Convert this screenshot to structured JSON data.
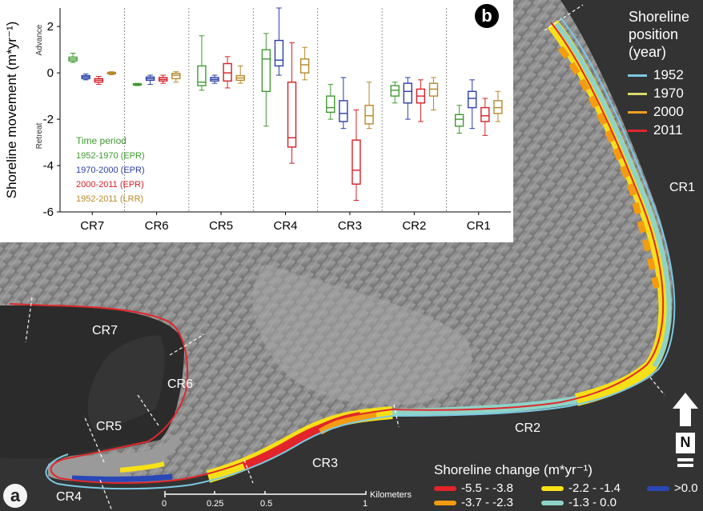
{
  "map": {
    "panel_a_label": "a",
    "panel_b_label": "b",
    "coast_labels": [
      "CR1",
      "CR2",
      "CR3",
      "CR4",
      "CR5",
      "CR6",
      "CR7"
    ],
    "north_label": "N",
    "scale": {
      "ticks": [
        "0",
        "0.25",
        "0.5",
        "1"
      ],
      "unit": "Kilometers"
    }
  },
  "shoreline_legend": {
    "title_lines": [
      "Shoreline",
      "position",
      "(year)"
    ],
    "items": [
      {
        "label": "1952",
        "color": "#7ec8e3"
      },
      {
        "label": "1970",
        "color": "#d9d96a"
      },
      {
        "label": "2000",
        "color": "#f0a020"
      },
      {
        "label": "2011",
        "color": "#e0282a"
      }
    ]
  },
  "change_legend": {
    "title": "Shoreline change (m*yr⁻¹)",
    "items": [
      {
        "label": "-5.5 - -3.8",
        "color": "#e3242b"
      },
      {
        "label": "-3.7 - -2.3",
        "color": "#f39c12"
      },
      {
        "label": "-2.2 - -1.4",
        "color": "#f7e017"
      },
      {
        "label": "-1.3 - 0.0",
        "color": "#8fd3c8"
      },
      {
        "label": ">0.0",
        "color": "#2a47b8"
      }
    ]
  },
  "chart_data": {
    "type": "box",
    "title": "",
    "ylabel": "Shoreline movement (m*yr⁻¹)",
    "ylim": [
      -6,
      2.8
    ],
    "yticks": [
      2,
      0,
      -2,
      -4,
      -6
    ],
    "y_annotations": {
      "upper": "Advance",
      "lower": "Retreat"
    },
    "categories": [
      "CR7",
      "CR6",
      "CR5",
      "CR4",
      "CR3",
      "CR2",
      "CR1"
    ],
    "legend_title": "Time period",
    "series": [
      {
        "name": "1952-1970 (EPR)",
        "color": "#3f9b2f",
        "boxes": [
          {
            "min": 0.45,
            "q1": 0.52,
            "median": 0.6,
            "q3": 0.68,
            "max": 0.85
          },
          {
            "min": -0.55,
            "q1": -0.52,
            "median": -0.5,
            "q3": -0.47,
            "max": -0.45
          },
          {
            "min": -0.75,
            "q1": -0.55,
            "median": -0.4,
            "q3": 0.3,
            "max": 1.6
          },
          {
            "min": -2.3,
            "q1": -0.8,
            "median": 0.6,
            "q3": 1.0,
            "max": 1.7
          },
          {
            "min": -2.0,
            "q1": -1.7,
            "median": -1.5,
            "q3": -1.0,
            "max": -0.5
          },
          {
            "min": -1.3,
            "q1": -1.0,
            "median": -0.75,
            "q3": -0.55,
            "max": -0.4
          },
          {
            "min": -2.6,
            "q1": -2.3,
            "median": -2.0,
            "q3": -1.8,
            "max": -1.4
          }
        ]
      },
      {
        "name": "1970-2000 (EPR)",
        "color": "#2b3fa6",
        "boxes": [
          {
            "min": -0.3,
            "q1": -0.25,
            "median": -0.18,
            "q3": -0.12,
            "max": -0.05
          },
          {
            "min": -0.5,
            "q1": -0.32,
            "median": -0.25,
            "q3": -0.18,
            "max": -0.1
          },
          {
            "min": -0.45,
            "q1": -0.35,
            "median": -0.28,
            "q3": -0.2,
            "max": -0.1
          },
          {
            "min": -0.1,
            "q1": 0.3,
            "median": 0.55,
            "q3": 1.4,
            "max": 2.8
          },
          {
            "min": -2.4,
            "q1": -2.1,
            "median": -1.75,
            "q3": -1.2,
            "max": -0.2
          },
          {
            "min": -2.0,
            "q1": -1.3,
            "median": -0.8,
            "q3": -0.45,
            "max": -0.2
          },
          {
            "min": -2.4,
            "q1": -1.5,
            "median": -1.1,
            "q3": -0.8,
            "max": -0.3
          }
        ]
      },
      {
        "name": "2000-2011 (EPR)",
        "color": "#d61f26",
        "boxes": [
          {
            "min": -0.5,
            "q1": -0.4,
            "median": -0.32,
            "q3": -0.25,
            "max": -0.15
          },
          {
            "min": -0.45,
            "q1": -0.35,
            "median": -0.28,
            "q3": -0.2,
            "max": -0.1
          },
          {
            "min": -0.65,
            "q1": -0.35,
            "median": 0.0,
            "q3": 0.4,
            "max": 0.7
          },
          {
            "min": -3.9,
            "q1": -3.2,
            "median": -2.8,
            "q3": -0.4,
            "max": 1.3
          },
          {
            "min": -5.5,
            "q1": -4.8,
            "median": -4.2,
            "q3": -2.9,
            "max": -1.6
          },
          {
            "min": -2.1,
            "q1": -1.3,
            "median": -1.0,
            "q3": -0.7,
            "max": -0.3
          },
          {
            "min": -2.7,
            "q1": -2.1,
            "median": -1.85,
            "q3": -1.5,
            "max": -1.1
          }
        ]
      },
      {
        "name": "1952-2011 (LRR)",
        "color": "#b8892a",
        "boxes": [
          {
            "min": -0.08,
            "q1": -0.04,
            "median": -0.01,
            "q3": 0.02,
            "max": 0.05
          },
          {
            "min": -0.4,
            "q1": -0.25,
            "median": -0.1,
            "q3": -0.02,
            "max": 0.05
          },
          {
            "min": -0.45,
            "q1": -0.32,
            "median": -0.22,
            "q3": -0.12,
            "max": 0.3
          },
          {
            "min": -0.3,
            "q1": 0.0,
            "median": 0.35,
            "q3": 0.6,
            "max": 1.1
          },
          {
            "min": -2.4,
            "q1": -2.2,
            "median": -1.85,
            "q3": -1.4,
            "max": -0.4
          },
          {
            "min": -1.6,
            "q1": -1.0,
            "median": -0.7,
            "q3": -0.45,
            "max": -0.2
          },
          {
            "min": -2.1,
            "q1": -1.75,
            "median": -1.5,
            "q3": -1.2,
            "max": -0.8
          }
        ]
      }
    ]
  }
}
